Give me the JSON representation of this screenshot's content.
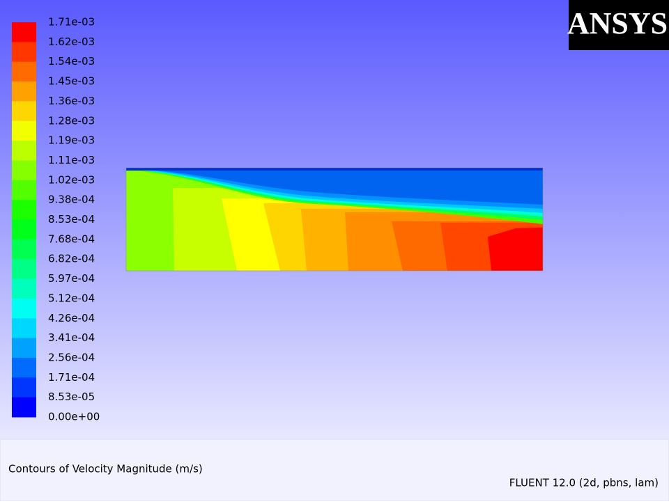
{
  "logo": "ANSYS",
  "colorbar": {
    "labels": [
      "1.71e-03",
      "1.62e-03",
      "1.54e-03",
      "1.45e-03",
      "1.36e-03",
      "1.28e-03",
      "1.19e-03",
      "1.11e-03",
      "1.02e-03",
      "9.38e-04",
      "8.53e-04",
      "7.68e-04",
      "6.82e-04",
      "5.97e-04",
      "5.12e-04",
      "4.26e-04",
      "3.41e-04",
      "2.56e-04",
      "1.71e-04",
      "8.53e-05",
      "0.00e+00"
    ]
  },
  "title": "Contours of Velocity Magnitude (m/s)",
  "footer": "FLUENT 12.0 (2d, pbns, lam)"
}
